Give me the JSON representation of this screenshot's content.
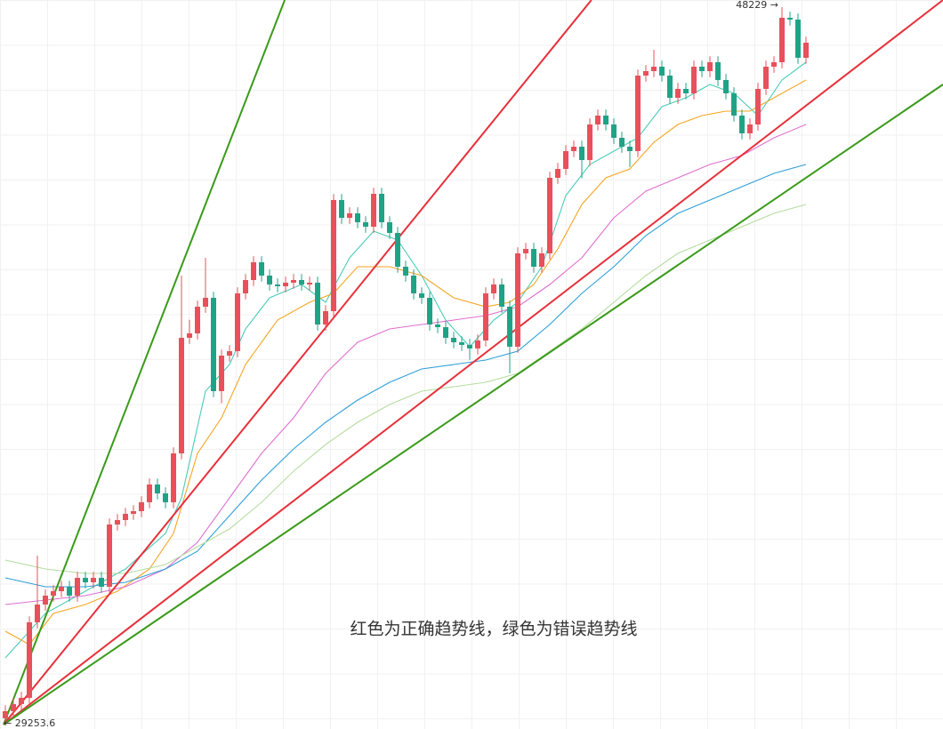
{
  "chart_data": {
    "type": "candlestick",
    "note": "红色为正确趋势线，绿色为错误趋势线",
    "note_color": "#e02020",
    "max_label": "48229 →",
    "min_label": "← 29253.6",
    "up_color": "#e8505b",
    "down_color": "#1fa386",
    "xlim": [
      -0.667,
      117.11
    ],
    "ylim": [
      29136,
      48418
    ],
    "open": [
      29420,
      29607,
      29795,
      29960,
      31958,
      32428,
      32664,
      32781,
      32899,
      32664,
      33134,
      33016,
      33134,
      32899,
      34545,
      34662,
      34827,
      34898,
      35133,
      35603,
      35368,
      35133,
      36426,
      39483,
      39600,
      40306,
      40541,
      38072,
      39012,
      39130,
      40658,
      41011,
      41481,
      41129,
      40894,
      40846,
      40941,
      41011,
      40894,
      40941,
      39835,
      40188,
      43127,
      42657,
      42775,
      42539,
      42422,
      43292,
      42539,
      42257,
      41364,
      41129,
      40658,
      40541,
      39835,
      39765,
      39483,
      39365,
      39295,
      39201,
      39412,
      40658,
      40894,
      40306,
      39248,
      41717,
      41834,
      41364,
      41717,
      43715,
      43950,
      44421,
      44538,
      44185,
      45126,
      45361,
      45126,
      44773,
      44538,
      44421,
      46419,
      46537,
      46654,
      46419,
      45831,
      46067,
      45949,
      46654,
      46537,
      46772,
      46302,
      45949,
      45361,
      44891,
      45126,
      46067,
      46654,
      46772,
      47948,
      47901,
      46890
    ],
    "close": [
      29607,
      29795,
      29960,
      31958,
      32428,
      32664,
      32781,
      32899,
      32664,
      33134,
      33016,
      33134,
      32899,
      34545,
      34662,
      34827,
      34898,
      35133,
      35603,
      35368,
      35133,
      36426,
      39483,
      39600,
      40306,
      40541,
      38072,
      39012,
      39130,
      40658,
      41011,
      41481,
      41129,
      40894,
      40846,
      40941,
      41011,
      40894,
      40941,
      39835,
      40188,
      43127,
      42657,
      42775,
      42539,
      42422,
      43292,
      42539,
      42257,
      41364,
      41129,
      40658,
      40541,
      39835,
      39765,
      39483,
      39365,
      39295,
      39201,
      39412,
      40658,
      40894,
      40306,
      39248,
      41717,
      41834,
      41364,
      41717,
      43715,
      43950,
      44421,
      44538,
      44185,
      45126,
      45361,
      45126,
      44773,
      44538,
      44421,
      46419,
      46537,
      46654,
      46419,
      45831,
      46067,
      45949,
      46654,
      46537,
      46772,
      46302,
      45949,
      45361,
      44891,
      45126,
      46067,
      46654,
      46772,
      47948,
      47901,
      46890,
      47289
    ],
    "high": [
      29767,
      29955,
      30120,
      32118,
      33722,
      32824,
      32941,
      33059,
      33059,
      33294,
      33294,
      33294,
      33294,
      34705,
      34822,
      34987,
      35058,
      35293,
      35763,
      35763,
      35528,
      36586,
      41129,
      39960,
      40466,
      41600,
      40701,
      39172,
      39290,
      40818,
      41171,
      41641,
      41641,
      41289,
      41054,
      41101,
      41171,
      41171,
      41101,
      41101,
      40348,
      43287,
      43287,
      42935,
      42935,
      42699,
      43452,
      43452,
      42699,
      42417,
      41524,
      41289,
      40818,
      40701,
      39995,
      39925,
      39643,
      39525,
      39455,
      39572,
      40818,
      41054,
      41054,
      40466,
      41877,
      41994,
      41994,
      41877,
      43875,
      44110,
      44581,
      44698,
      44698,
      45286,
      45521,
      45521,
      45286,
      44933,
      44698,
      46579,
      46697,
      47100,
      46814,
      46579,
      46227,
      46227,
      46814,
      46814,
      46932,
      46932,
      46462,
      46109,
      45521,
      45286,
      46227,
      46814,
      46932,
      48229,
      48108,
      48061,
      47449
    ],
    "low": [
      29253.6,
      29447,
      29635,
      29800,
      31798,
      32268,
      32504,
      32621,
      32504,
      32504,
      32856,
      32856,
      32739,
      32739,
      34385,
      34502,
      34667,
      34738,
      34973,
      35208,
      34973,
      34973,
      36266,
      39323,
      39440,
      40146,
      37912,
      37750,
      38852,
      38970,
      40498,
      40851,
      40969,
      40734,
      40686,
      40686,
      40781,
      40734,
      40734,
      39675,
      39675,
      40028,
      42497,
      42497,
      42379,
      42262,
      42262,
      42379,
      42097,
      41204,
      40969,
      40498,
      40381,
      39675,
      39605,
      39323,
      39205,
      39135,
      38900,
      39041,
      39252,
      40498,
      40146,
      38542,
      39088,
      41557,
      41204,
      41204,
      41557,
      43555,
      43790,
      44261,
      43700,
      44025,
      44966,
      44966,
      44613,
      44378,
      44000,
      44261,
      46259,
      46377,
      46259,
      45671,
      45671,
      45789,
      45789,
      46377,
      46377,
      46142,
      45789,
      45201,
      44731,
      44731,
      44966,
      45907,
      46494,
      46612,
      47741,
      46730,
      46730
    ],
    "series": [
      {
        "color": "#4ccbb8",
        "x": [
          0,
          5,
          10,
          15,
          20,
          22,
          25,
          28,
          30,
          33,
          37,
          40,
          43,
          46,
          49,
          52,
          55,
          58,
          61,
          64,
          67,
          70,
          73,
          76,
          79,
          82,
          85,
          88,
          91,
          94,
          97,
          100
        ],
        "values": [
          31018,
          32193,
          32781,
          33369,
          34310,
          35250,
          38072,
          38777,
          39718,
          40541,
          40894,
          40423,
          41599,
          42304,
          42069,
          41129,
          39953,
          39248,
          39953,
          40423,
          41364,
          43245,
          44068,
          44421,
          44773,
          45596,
          45831,
          46184,
          45949,
          45361,
          46302,
          46772
        ]
      },
      {
        "color": "#f5a623",
        "x": [
          0,
          3,
          6,
          10,
          14,
          18,
          21,
          24,
          27,
          30,
          34,
          38,
          41,
          44,
          48,
          52,
          56,
          60,
          63,
          66,
          69,
          72,
          75,
          78,
          81,
          84,
          87,
          90,
          93,
          96,
          100
        ],
        "values": [
          31723,
          31370,
          32193,
          32428,
          32781,
          33369,
          34310,
          36426,
          37366,
          38777,
          39953,
          40423,
          40658,
          41364,
          41364,
          41129,
          40541,
          40306,
          40423,
          40894,
          41834,
          43010,
          43715,
          43950,
          44656,
          45126,
          45361,
          45479,
          45479,
          45831,
          46302
        ]
      },
      {
        "color": "#e070d0",
        "x": [
          0,
          10,
          15,
          20,
          24,
          28,
          32,
          36,
          40,
          44,
          48,
          52,
          56,
          60,
          64,
          68,
          72,
          76,
          80,
          84,
          88,
          92,
          96,
          100
        ],
        "values": [
          32428,
          32664,
          32899,
          33369,
          34074,
          35250,
          36426,
          37366,
          38542,
          39365,
          39718,
          39835,
          39953,
          40071,
          40306,
          40894,
          41599,
          42657,
          43362,
          43715,
          44068,
          44303,
          44773,
          45126
        ]
      },
      {
        "color": "#2e9fd8",
        "x": [
          0,
          5,
          10,
          15,
          20,
          24,
          28,
          32,
          36,
          40,
          44,
          48,
          52,
          56,
          60,
          64,
          68,
          72,
          76,
          80,
          84,
          88,
          92,
          96,
          100
        ],
        "values": [
          33134,
          32899,
          32899,
          33016,
          33369,
          33839,
          34780,
          35720,
          36543,
          37249,
          37837,
          38307,
          38660,
          38777,
          38895,
          39130,
          39835,
          40658,
          41364,
          42187,
          42775,
          43127,
          43480,
          43833,
          44068
        ]
      },
      {
        "color": "#b5dca0",
        "x": [
          0,
          5,
          10,
          15,
          20,
          24,
          28,
          32,
          36,
          40,
          44,
          48,
          52,
          56,
          60,
          64,
          68,
          72,
          76,
          80,
          84,
          88,
          92,
          96,
          100
        ],
        "values": [
          33604,
          33369,
          33251,
          33251,
          33487,
          33957,
          34427,
          35133,
          35956,
          36661,
          37249,
          37719,
          38072,
          38189,
          38307,
          38542,
          39130,
          39718,
          40423,
          41129,
          41717,
          42069,
          42422,
          42775,
          43010
        ]
      }
    ],
    "trendlines": [
      {
        "color": "#3a9a1a",
        "x": [
          -0.22,
          34.9
        ],
        "values": [
          29253.6,
          48418
        ]
      },
      {
        "color": "#e8303a",
        "x": [
          -0.22,
          73.2
        ],
        "values": [
          29253.6,
          48418
        ]
      },
      {
        "color": "#e8303a",
        "x": [
          -0.22,
          117.11
        ],
        "values": [
          29253.6,
          48418
        ]
      },
      {
        "color": "#3a9a1a",
        "x": [
          -0.22,
          117.11
        ],
        "values": [
          29253.6,
          46184
        ]
      }
    ]
  }
}
